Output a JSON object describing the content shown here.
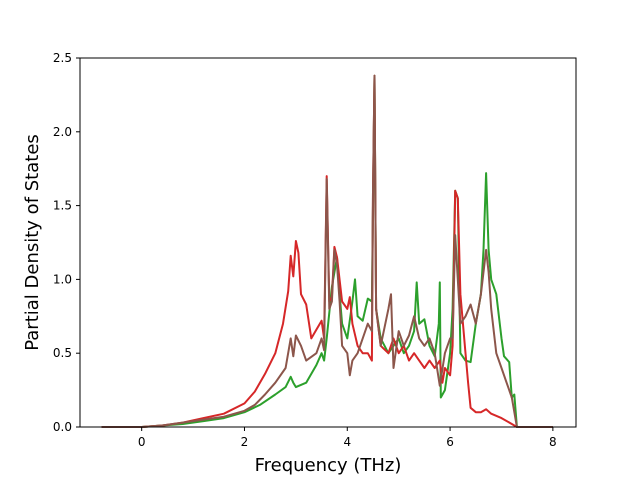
{
  "chart_data": {
    "type": "line",
    "title": "",
    "xlabel": "Frequency (THz)",
    "ylabel": "Partial Density of States",
    "xlim": [
      -1.2,
      8.45
    ],
    "ylim": [
      0.0,
      2.5
    ],
    "x_ticks": [
      0,
      2,
      4,
      6,
      8
    ],
    "x_tick_labels": [
      "0",
      "2",
      "4",
      "6",
      "8"
    ],
    "y_ticks": [
      0.0,
      0.5,
      1.0,
      1.5,
      2.0,
      2.5
    ],
    "y_tick_labels": [
      "0.0",
      "0.5",
      "1.0",
      "1.5",
      "2.0",
      "2.5"
    ],
    "grid": false,
    "legend": "none",
    "series": [
      {
        "color": "#2ca02c",
        "points": [
          [
            -0.78,
            0.0
          ],
          [
            0.0,
            0.0
          ],
          [
            0.4,
            0.01
          ],
          [
            0.8,
            0.02
          ],
          [
            1.2,
            0.04
          ],
          [
            1.6,
            0.06
          ],
          [
            2.0,
            0.1
          ],
          [
            2.3,
            0.15
          ],
          [
            2.6,
            0.22
          ],
          [
            2.8,
            0.27
          ],
          [
            2.9,
            0.34
          ],
          [
            2.95,
            0.3
          ],
          [
            3.0,
            0.27
          ],
          [
            3.2,
            0.3
          ],
          [
            3.4,
            0.42
          ],
          [
            3.5,
            0.5
          ],
          [
            3.55,
            0.45
          ],
          [
            3.6,
            0.6
          ],
          [
            3.7,
            0.95
          ],
          [
            3.8,
            1.15
          ],
          [
            3.85,
            0.9
          ],
          [
            3.9,
            0.7
          ],
          [
            4.0,
            0.6
          ],
          [
            4.1,
            0.85
          ],
          [
            4.15,
            1.0
          ],
          [
            4.2,
            0.75
          ],
          [
            4.3,
            0.72
          ],
          [
            4.4,
            0.87
          ],
          [
            4.48,
            0.85
          ],
          [
            4.5,
            1.5
          ],
          [
            4.53,
            2.38
          ],
          [
            4.56,
            0.8
          ],
          [
            4.65,
            0.6
          ],
          [
            4.8,
            0.5
          ],
          [
            4.9,
            0.55
          ],
          [
            5.0,
            0.6
          ],
          [
            5.1,
            0.5
          ],
          [
            5.2,
            0.55
          ],
          [
            5.3,
            0.65
          ],
          [
            5.35,
            0.98
          ],
          [
            5.4,
            0.7
          ],
          [
            5.5,
            0.73
          ],
          [
            5.6,
            0.55
          ],
          [
            5.7,
            0.48
          ],
          [
            5.78,
            0.7
          ],
          [
            5.8,
            0.98
          ],
          [
            5.82,
            0.2
          ],
          [
            5.9,
            0.25
          ],
          [
            6.0,
            0.5
          ],
          [
            6.05,
            0.8
          ],
          [
            6.1,
            1.6
          ],
          [
            6.15,
            1.55
          ],
          [
            6.2,
            0.5
          ],
          [
            6.3,
            0.45
          ],
          [
            6.4,
            0.44
          ],
          [
            6.5,
            0.7
          ],
          [
            6.6,
            0.9
          ],
          [
            6.65,
            1.2
          ],
          [
            6.7,
            1.72
          ],
          [
            6.75,
            1.2
          ],
          [
            6.8,
            1.0
          ],
          [
            6.9,
            0.9
          ],
          [
            7.0,
            0.6
          ],
          [
            7.05,
            0.48
          ],
          [
            7.15,
            0.44
          ],
          [
            7.2,
            0.2
          ],
          [
            7.25,
            0.22
          ],
          [
            7.3,
            0.0
          ],
          [
            8.0,
            0.0
          ]
        ]
      },
      {
        "color": "#d62728",
        "points": [
          [
            -0.78,
            0.0
          ],
          [
            0.0,
            0.0
          ],
          [
            0.4,
            0.01
          ],
          [
            0.8,
            0.03
          ],
          [
            1.2,
            0.06
          ],
          [
            1.6,
            0.09
          ],
          [
            2.0,
            0.16
          ],
          [
            2.2,
            0.24
          ],
          [
            2.4,
            0.36
          ],
          [
            2.6,
            0.5
          ],
          [
            2.75,
            0.7
          ],
          [
            2.85,
            0.92
          ],
          [
            2.9,
            1.16
          ],
          [
            2.95,
            1.02
          ],
          [
            3.0,
            1.26
          ],
          [
            3.05,
            1.18
          ],
          [
            3.1,
            0.9
          ],
          [
            3.2,
            0.83
          ],
          [
            3.3,
            0.6
          ],
          [
            3.4,
            0.66
          ],
          [
            3.5,
            0.72
          ],
          [
            3.55,
            0.6
          ],
          [
            3.6,
            1.7
          ],
          [
            3.65,
            0.85
          ],
          [
            3.7,
            0.88
          ],
          [
            3.75,
            1.22
          ],
          [
            3.8,
            1.15
          ],
          [
            3.9,
            0.85
          ],
          [
            4.0,
            0.8
          ],
          [
            4.05,
            0.88
          ],
          [
            4.1,
            0.7
          ],
          [
            4.2,
            0.55
          ],
          [
            4.3,
            0.5
          ],
          [
            4.4,
            0.5
          ],
          [
            4.48,
            0.45
          ],
          [
            4.5,
            1.6
          ],
          [
            4.53,
            2.38
          ],
          [
            4.56,
            0.8
          ],
          [
            4.65,
            0.55
          ],
          [
            4.8,
            0.5
          ],
          [
            4.9,
            0.6
          ],
          [
            5.0,
            0.5
          ],
          [
            5.1,
            0.55
          ],
          [
            5.2,
            0.45
          ],
          [
            5.3,
            0.5
          ],
          [
            5.4,
            0.45
          ],
          [
            5.5,
            0.4
          ],
          [
            5.6,
            0.45
          ],
          [
            5.7,
            0.4
          ],
          [
            5.8,
            0.45
          ],
          [
            5.85,
            0.3
          ],
          [
            5.9,
            0.4
          ],
          [
            6.0,
            0.35
          ],
          [
            6.05,
            0.55
          ],
          [
            6.1,
            1.6
          ],
          [
            6.15,
            1.55
          ],
          [
            6.2,
            0.9
          ],
          [
            6.3,
            0.5
          ],
          [
            6.35,
            0.3
          ],
          [
            6.4,
            0.13
          ],
          [
            6.5,
            0.1
          ],
          [
            6.6,
            0.1
          ],
          [
            6.7,
            0.12
          ],
          [
            6.8,
            0.09
          ],
          [
            7.0,
            0.06
          ],
          [
            7.2,
            0.02
          ],
          [
            7.3,
            0.0
          ],
          [
            8.0,
            0.0
          ]
        ]
      },
      {
        "color": "#8c564b",
        "points": [
          [
            -0.78,
            0.0
          ],
          [
            0.0,
            0.0
          ],
          [
            0.4,
            0.01
          ],
          [
            0.8,
            0.03
          ],
          [
            1.2,
            0.05
          ],
          [
            1.6,
            0.07
          ],
          [
            2.0,
            0.11
          ],
          [
            2.2,
            0.15
          ],
          [
            2.4,
            0.22
          ],
          [
            2.6,
            0.3
          ],
          [
            2.8,
            0.4
          ],
          [
            2.9,
            0.6
          ],
          [
            2.95,
            0.48
          ],
          [
            3.0,
            0.62
          ],
          [
            3.1,
            0.55
          ],
          [
            3.2,
            0.45
          ],
          [
            3.4,
            0.5
          ],
          [
            3.5,
            0.6
          ],
          [
            3.55,
            0.52
          ],
          [
            3.6,
            1.68
          ],
          [
            3.65,
            0.8
          ],
          [
            3.7,
            0.85
          ],
          [
            3.75,
            1.2
          ],
          [
            3.8,
            1.1
          ],
          [
            3.85,
            0.85
          ],
          [
            3.9,
            0.55
          ],
          [
            4.0,
            0.5
          ],
          [
            4.05,
            0.35
          ],
          [
            4.1,
            0.45
          ],
          [
            4.2,
            0.5
          ],
          [
            4.3,
            0.6
          ],
          [
            4.4,
            0.7
          ],
          [
            4.48,
            0.65
          ],
          [
            4.5,
            1.6
          ],
          [
            4.53,
            2.38
          ],
          [
            4.56,
            0.8
          ],
          [
            4.65,
            0.55
          ],
          [
            4.8,
            0.8
          ],
          [
            4.85,
            0.9
          ],
          [
            4.9,
            0.4
          ],
          [
            5.0,
            0.65
          ],
          [
            5.1,
            0.55
          ],
          [
            5.2,
            0.62
          ],
          [
            5.3,
            0.75
          ],
          [
            5.4,
            0.6
          ],
          [
            5.5,
            0.55
          ],
          [
            5.6,
            0.6
          ],
          [
            5.7,
            0.5
          ],
          [
            5.8,
            0.28
          ],
          [
            5.9,
            0.5
          ],
          [
            6.0,
            0.6
          ],
          [
            6.05,
            0.6
          ],
          [
            6.1,
            1.3
          ],
          [
            6.15,
            1.0
          ],
          [
            6.2,
            0.7
          ],
          [
            6.3,
            0.75
          ],
          [
            6.4,
            0.83
          ],
          [
            6.5,
            0.7
          ],
          [
            6.6,
            0.9
          ],
          [
            6.7,
            1.2
          ],
          [
            6.75,
            1.05
          ],
          [
            6.8,
            0.8
          ],
          [
            6.9,
            0.5
          ],
          [
            7.0,
            0.4
          ],
          [
            7.1,
            0.3
          ],
          [
            7.2,
            0.2
          ],
          [
            7.3,
            0.0
          ],
          [
            8.0,
            0.0
          ]
        ]
      }
    ]
  }
}
